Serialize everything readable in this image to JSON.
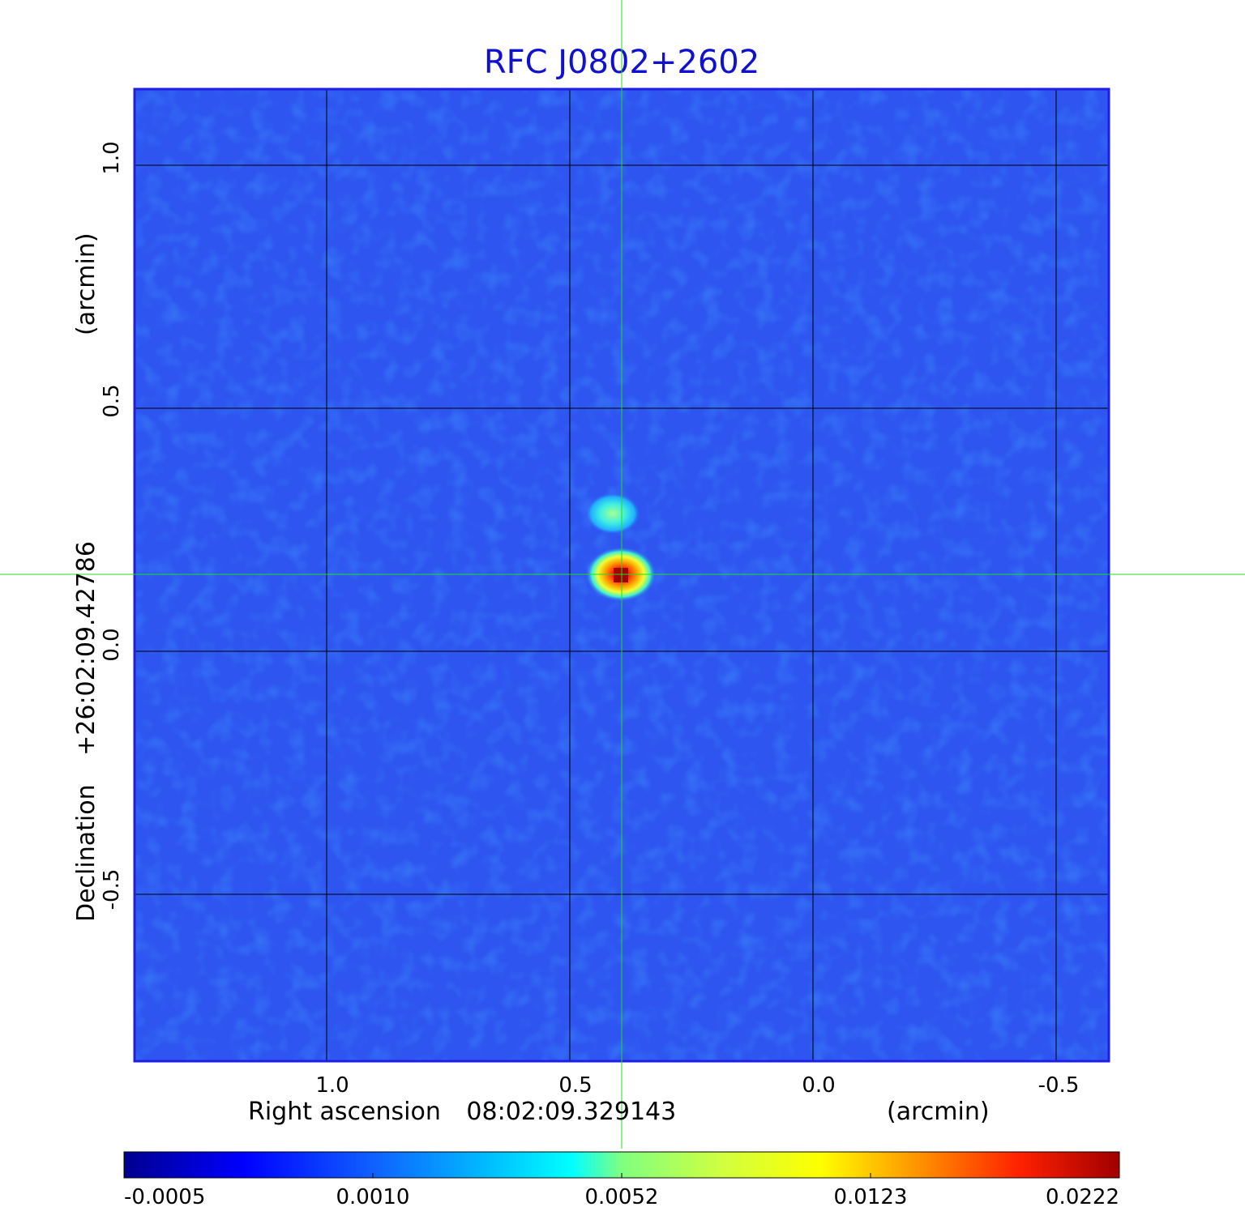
{
  "title": "RFC J0802+2602",
  "x_axis": {
    "label": "Right ascension",
    "center": "08:02:09.329143",
    "unit": "(arcmin)",
    "ticks": [
      "1.0",
      "0.5",
      "0.0",
      "-0.5"
    ]
  },
  "y_axis": {
    "label": "Declination",
    "center": "+26:02:09.42786",
    "unit": "(arcmin)",
    "ticks": [
      "1.0",
      "0.5",
      "0.0",
      "-0.5"
    ]
  },
  "colorbar": {
    "ticks": [
      "-0.0005",
      "0.0010",
      "0.0052",
      "0.0123",
      "0.0222"
    ],
    "colormap": "jet"
  },
  "colors": {
    "title": "#1010d0",
    "frame": "#1e1ee6",
    "background": "#2e55f0",
    "crosshair": "#22dd22",
    "grid": "#000000"
  }
}
